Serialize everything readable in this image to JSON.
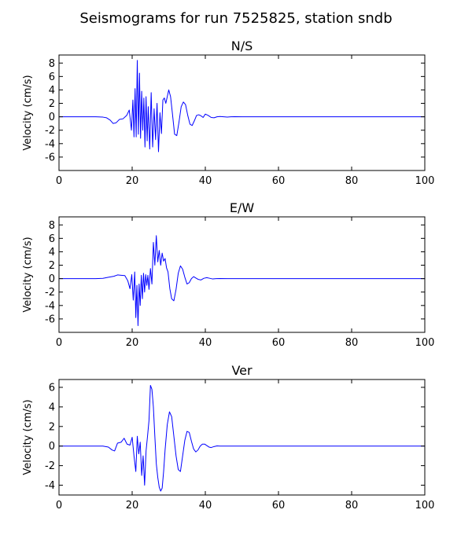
{
  "chart_data": {
    "type": "line",
    "title": "Seismograms for run 7525825, station sndb",
    "panels": [
      {
        "title": "N/S",
        "ylabel": "Velocity (cm/s)",
        "xlim": [
          0,
          100
        ],
        "ylim": [
          -8,
          9.2
        ],
        "xticks": [
          0,
          20,
          40,
          60,
          80,
          100
        ],
        "yticks": [
          8,
          6,
          4,
          2,
          0,
          -2,
          -4,
          -6
        ],
        "color": "#0000ff",
        "x": [
          0,
          10,
          12,
          13,
          14,
          14.8,
          15.6,
          16.5,
          17.5,
          18.5,
          19.2,
          19.8,
          20.2,
          20.5,
          20.8,
          21.1,
          21.4,
          21.7,
          22.0,
          22.3,
          22.6,
          22.9,
          23.2,
          23.5,
          23.8,
          24.1,
          24.4,
          24.8,
          25.2,
          25.6,
          26.0,
          26.4,
          26.8,
          27.2,
          27.6,
          28.0,
          28.4,
          28.8,
          29.2,
          29.6,
          30.0,
          30.5,
          31.0,
          31.6,
          32.2,
          32.8,
          33.4,
          34.0,
          34.6,
          35.2,
          35.8,
          36.4,
          37.0,
          37.6,
          38.2,
          38.8,
          39.4,
          40.0,
          40.8,
          41.6,
          42.4,
          43.2,
          44.0,
          45.0,
          46.0,
          47.0,
          48.0,
          50.0,
          100
        ],
        "y": [
          0,
          0,
          -0.05,
          -0.15,
          -0.5,
          -1.0,
          -0.9,
          -0.4,
          -0.3,
          0.2,
          1.0,
          -2.0,
          2.5,
          -3.0,
          4.2,
          -3.0,
          8.4,
          -2.6,
          6.5,
          -3.2,
          3.8,
          -2.0,
          2.8,
          -4.5,
          3.0,
          -3.6,
          1.5,
          -4.8,
          3.6,
          -4.5,
          1.2,
          -3.4,
          2.0,
          -5.2,
          0.6,
          -2.5,
          2.5,
          2.8,
          2.0,
          3.0,
          4.0,
          3.0,
          0.5,
          -2.6,
          -2.8,
          -0.8,
          1.5,
          2.2,
          1.8,
          0.2,
          -1.1,
          -1.3,
          -0.6,
          0.2,
          0.3,
          0.15,
          -0.1,
          0.4,
          0.2,
          -0.1,
          -0.15,
          0.0,
          0.05,
          0.0,
          -0.05,
          0.0,
          0.02,
          0.0,
          0
        ]
      },
      {
        "title": "E/W",
        "ylabel": "Velocity (cm/s)",
        "xlim": [
          0,
          100
        ],
        "ylim": [
          -8,
          9.2
        ],
        "xticks": [
          0,
          20,
          40,
          60,
          80,
          100
        ],
        "yticks": [
          8,
          6,
          4,
          2,
          0,
          -2,
          -4,
          -6
        ],
        "color": "#0000ff",
        "x": [
          0,
          10,
          12,
          13.5,
          15,
          16,
          17,
          18,
          18.8,
          19.4,
          19.9,
          20.3,
          20.7,
          21.0,
          21.3,
          21.6,
          21.9,
          22.2,
          22.5,
          22.8,
          23.1,
          23.4,
          23.7,
          24.0,
          24.3,
          24.6,
          25.0,
          25.4,
          25.8,
          26.2,
          26.6,
          27.0,
          27.4,
          27.8,
          28.2,
          28.6,
          29.0,
          29.4,
          29.8,
          30.3,
          30.8,
          31.4,
          32.0,
          32.6,
          33.2,
          33.8,
          34.4,
          35.0,
          35.6,
          36.2,
          36.8,
          37.4,
          38.0,
          38.8,
          39.6,
          40.4,
          41.2,
          42.0,
          43.0,
          44.0,
          46.0,
          48.0,
          100
        ],
        "y": [
          0,
          0,
          0.05,
          0.2,
          0.35,
          0.55,
          0.5,
          0.45,
          -0.3,
          -1.5,
          0.6,
          -3.2,
          1.0,
          -5.8,
          -1.0,
          -7.0,
          -0.8,
          -4.0,
          0.5,
          -3.0,
          0.8,
          -2.0,
          0.6,
          -1.0,
          0.5,
          -1.6,
          1.5,
          -0.8,
          5.4,
          2.0,
          6.4,
          2.5,
          4.2,
          2.0,
          3.8,
          2.6,
          3.0,
          1.6,
          1.0,
          -1.5,
          -3.0,
          -3.3,
          -1.6,
          0.8,
          1.9,
          1.4,
          0.2,
          -0.8,
          -0.6,
          0.0,
          0.3,
          0.1,
          -0.1,
          -0.2,
          0.05,
          0.15,
          0.05,
          -0.05,
          0.0,
          0.02,
          0.0,
          0.0,
          0
        ]
      },
      {
        "title": "Ver",
        "ylabel": "Velocity (cm/s)",
        "xlim": [
          0,
          100
        ],
        "ylim": [
          -5,
          6.8
        ],
        "xticks": [
          0,
          20,
          40,
          60,
          80,
          100
        ],
        "yticks": [
          6,
          4,
          2,
          0,
          -2,
          -4
        ],
        "color": "#0000ff",
        "x": [
          0,
          10,
          12,
          13.5,
          14.5,
          15.2,
          16,
          17,
          17.8,
          18.6,
          19.4,
          20.0,
          20.5,
          21.0,
          21.4,
          21.8,
          22.2,
          22.6,
          23.0,
          23.4,
          23.8,
          24.2,
          24.6,
          25.0,
          25.4,
          25.8,
          26.2,
          26.6,
          27.0,
          27.4,
          27.8,
          28.2,
          28.6,
          29.0,
          29.6,
          30.2,
          30.8,
          31.4,
          32.0,
          32.6,
          33.2,
          33.8,
          34.4,
          35.0,
          35.6,
          36.2,
          36.8,
          37.4,
          38.0,
          38.6,
          39.2,
          39.8,
          40.4,
          41.0,
          41.6,
          42.4,
          43.2,
          44.0,
          45.0,
          46.0,
          48.0,
          100
        ],
        "y": [
          0,
          0,
          0.0,
          -0.1,
          -0.4,
          -0.5,
          0.3,
          0.4,
          0.8,
          0.2,
          0.1,
          0.9,
          -1.0,
          -2.6,
          1.0,
          -0.8,
          0.4,
          -3.0,
          -1.0,
          -4.0,
          -0.5,
          1.0,
          2.6,
          6.2,
          5.8,
          4.0,
          1.0,
          -1.8,
          -3.2,
          -4.2,
          -4.6,
          -4.3,
          -2.6,
          -0.4,
          2.2,
          3.5,
          3.0,
          1.0,
          -1.0,
          -2.4,
          -2.6,
          -1.0,
          0.6,
          1.5,
          1.4,
          0.5,
          -0.3,
          -0.6,
          -0.4,
          0.0,
          0.2,
          0.2,
          0.05,
          -0.1,
          -0.15,
          -0.05,
          0.02,
          0.0,
          0.0,
          0.0,
          0.0,
          0
        ]
      }
    ]
  }
}
